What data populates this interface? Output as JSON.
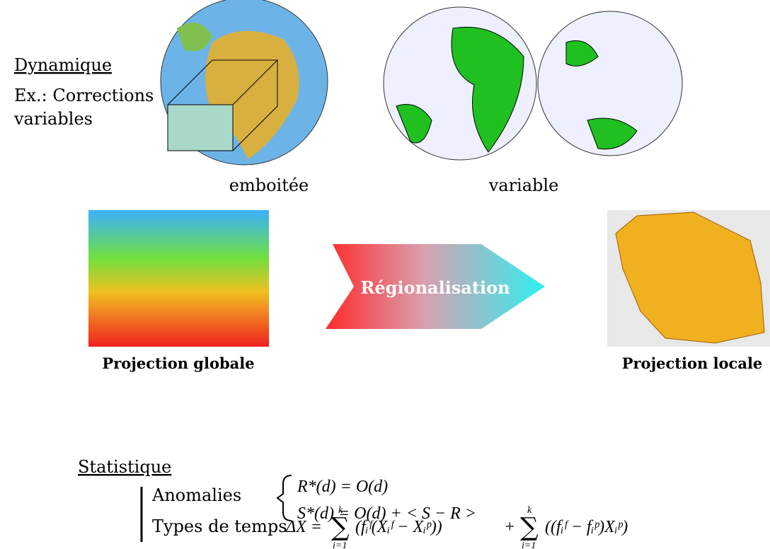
{
  "dynamic": {
    "title": "Dynamique",
    "example": [
      "Ex.: Corrections",
      "variables"
    ],
    "captions": [
      "emboitée",
      "variable"
    ]
  },
  "regionalization": {
    "left_caption": "Projection globale",
    "arrow_label": "Régionalisation",
    "right_caption": "Projection locale"
  },
  "statistical": {
    "title": "Statistique",
    "anomalies": {
      "label": "Anomalies",
      "equations": [
        "R*(d) = O(d)",
        "S*(d) = O(d) + < S − R >"
      ]
    },
    "weather_types": {
      "label": "Types de temps",
      "lhs": "ΔX =",
      "operator": "+",
      "terms": [
        {
          "upper": "k",
          "sum": "∑",
          "lower": "i=1",
          "body": "(fᵢᶠ(Xᵢᶠ − Xᵢᵖ))"
        },
        {
          "upper": "k",
          "sum": "∑",
          "lower": "i=1",
          "body": "((fᵢᶠ − fᵢᵖ)Xᵢᵖ)"
        }
      ]
    }
  }
}
